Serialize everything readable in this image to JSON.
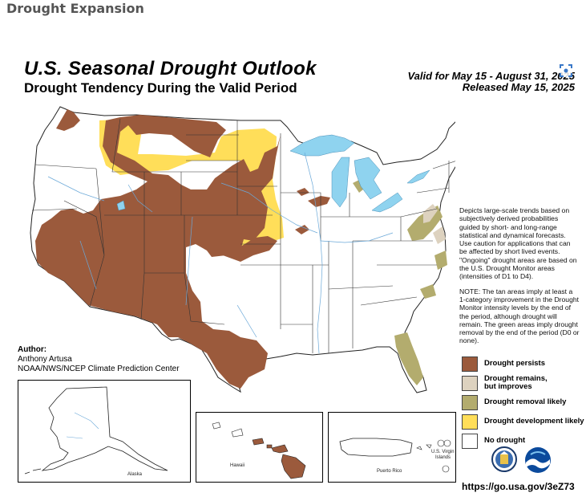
{
  "page": {
    "heading": "Drought Expansion"
  },
  "map": {
    "title": "U.S. Seasonal Drought Outlook",
    "subtitle": "Drought Tendency During the Valid Period",
    "valid": "Valid for May 15 - August 31, 2025",
    "released": "Released May 15, 2025",
    "description_1": "Depicts large-scale trends based on subjectively derived probabilities guided by short- and long-range statistical and dynamical forecasts. Use caution for applications that can be affected by short lived events. \"Ongoing\" drought areas are based on the U.S. Drought Monitor areas (intensities of D1 to D4).",
    "description_2": "NOTE: The tan areas imply at least a 1-category improvement in the Drought Monitor intensity levels by the end of the period, although drought will remain. The green areas imply drought removal by the end of the period (D0 or none).",
    "author_label": "Author:",
    "author_name": "Anthony Artusa",
    "author_org": "NOAA/NWS/NCEP Climate Prediction Center",
    "url": "https://go.usa.gov/3eZ73",
    "insets": {
      "alaska": "Alaska",
      "hawaii": "Hawaii",
      "puerto_rico": "Puerto Rico",
      "virgin_islands_1": "U.S. Virgin",
      "virgin_islands_2": "Islands"
    },
    "logos": {
      "doc": "department-of-commerce-seal",
      "noaa": "noaa-logo"
    }
  },
  "legend": [
    {
      "label": "Drought persists",
      "color": "#9b5a3c"
    },
    {
      "label": "Drought remains, but improves",
      "color": "#ddd2bf"
    },
    {
      "label": "Drought removal likely",
      "color": "#b3ac6e"
    },
    {
      "label": "Drought development likely",
      "color": "#ffde59"
    },
    {
      "label": "No drought",
      "color": "#ffffff"
    }
  ],
  "colors": {
    "persist": "#9b5a3c",
    "improve": "#ddd2bf",
    "removal": "#b3ac6e",
    "development": "#ffde59",
    "water": "#8fd3ef",
    "state_line": "#333333",
    "river": "#6aa8d8"
  }
}
